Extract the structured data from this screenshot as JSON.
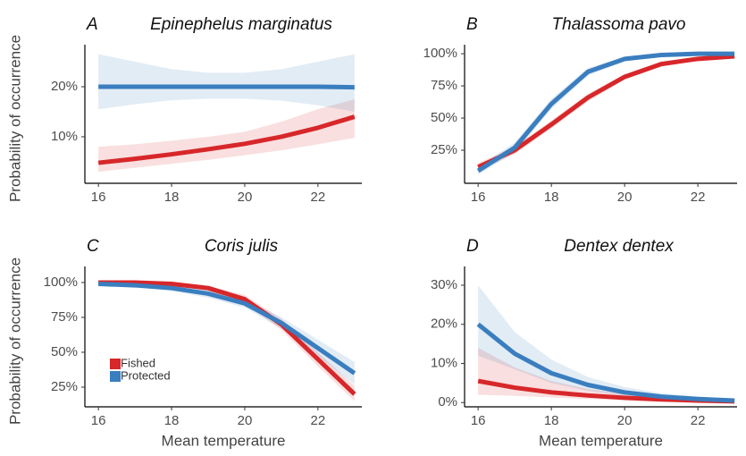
{
  "chart_data": [
    {
      "type": "line",
      "panel": "A",
      "title": "Epinephelus marginatus",
      "ylabel": "Probability of occurrence",
      "x": [
        16,
        17,
        18,
        19,
        20,
        21,
        22,
        23
      ],
      "xlim": [
        15.63,
        23.2
      ],
      "xticks": [
        16,
        18,
        20,
        22
      ],
      "ylim": [
        0.7,
        28.4
      ],
      "yticks": [
        {
          "value": 10,
          "label": "10%"
        },
        {
          "value": 20,
          "label": "20%"
        }
      ],
      "series": [
        {
          "color": "#d7272a",
          "values": [
            4.8,
            5.6,
            6.5,
            7.5,
            8.6,
            10,
            11.8,
            14
          ],
          "lower": [
            3,
            3.8,
            4.6,
            5.4,
            6.3,
            7.3,
            8.5,
            9.8
          ],
          "upper": [
            8,
            8.5,
            9.2,
            10,
            11,
            13,
            15.5,
            17.5
          ]
        },
        {
          "color": "#3a7ebf",
          "values": [
            20,
            20,
            20,
            20,
            20,
            20,
            20,
            19.9
          ],
          "lower": [
            15.5,
            16.5,
            17.3,
            17.6,
            17.6,
            17.2,
            16.3,
            15
          ],
          "upper": [
            26.5,
            25,
            23.5,
            22.8,
            22.8,
            23.5,
            25,
            26.5
          ]
        }
      ]
    },
    {
      "type": "line",
      "panel": "B",
      "title": "Thalassoma pavo",
      "x": [
        16,
        17,
        18,
        19,
        20,
        21,
        22,
        23
      ],
      "xlim": [
        15.63,
        23.07
      ],
      "xticks": [
        16,
        18,
        20,
        22
      ],
      "ylim": [
        -0.7,
        107
      ],
      "yticks": [
        {
          "value": 25,
          "label": "25%"
        },
        {
          "value": 50,
          "label": "50%"
        },
        {
          "value": 75,
          "label": "75%"
        },
        {
          "value": 100,
          "label": "100%"
        }
      ],
      "series": [
        {
          "color": "#d7272a",
          "values": [
            12,
            25,
            45,
            66,
            82,
            92,
            96,
            98
          ],
          "lower": [
            9,
            22,
            42,
            63,
            80,
            90,
            95,
            97
          ],
          "upper": [
            15,
            28,
            48,
            69,
            84,
            93.5,
            97,
            99
          ]
        },
        {
          "color": "#3a7ebf",
          "values": [
            9,
            27,
            61,
            86,
            96,
            99,
            100,
            100
          ],
          "lower": [
            6,
            23,
            57,
            83,
            94,
            98,
            99.5,
            99.8
          ],
          "upper": [
            12,
            31,
            65,
            89,
            97.5,
            99.6,
            100,
            100
          ]
        }
      ]
    },
    {
      "type": "line",
      "panel": "C",
      "title": "Coris julis",
      "ylabel": "Probability of occurrence",
      "xlabel": "Mean temperature",
      "legend": "bottom-left",
      "x": [
        16,
        17,
        18,
        19,
        20,
        21,
        22,
        23
      ],
      "xlim": [
        15.63,
        23.2
      ],
      "xticks": [
        16,
        18,
        20,
        22
      ],
      "ylim": [
        10.9,
        111.5
      ],
      "yticks": [
        {
          "value": 25,
          "label": "25%"
        },
        {
          "value": 50,
          "label": "50%"
        },
        {
          "value": 75,
          "label": "75%"
        },
        {
          "value": 100,
          "label": "100%"
        }
      ],
      "series": [
        {
          "name": "Fished",
          "color": "#d7272a",
          "values": [
            100,
            100,
            99,
            96,
            88,
            70,
            45,
            20
          ],
          "lower": [
            99,
            99,
            98,
            94,
            85,
            66,
            40,
            15
          ],
          "upper": [
            100,
            100,
            99.5,
            97.5,
            91,
            74,
            50,
            26
          ]
        },
        {
          "name": "Protected",
          "color": "#3a7ebf",
          "values": [
            99,
            98,
            96,
            92,
            85,
            71,
            53,
            35
          ],
          "lower": [
            97.5,
            96.5,
            94,
            89,
            82,
            67,
            47,
            27
          ],
          "upper": [
            100,
            99.5,
            98,
            94.5,
            88,
            75,
            59,
            43
          ]
        }
      ]
    },
    {
      "type": "line",
      "panel": "D",
      "title": "Dentex dentex",
      "xlabel": "Mean temperature",
      "x": [
        16,
        17,
        18,
        19,
        20,
        21,
        22,
        23
      ],
      "xlim": [
        15.63,
        23.07
      ],
      "xticks": [
        16,
        18,
        20,
        22
      ],
      "ylim": [
        -1.1,
        34.8
      ],
      "yticks": [
        {
          "value": 0,
          "label": "0%"
        },
        {
          "value": 10,
          "label": "10%"
        },
        {
          "value": 20,
          "label": "20%"
        },
        {
          "value": 30,
          "label": "30%"
        }
      ],
      "series": [
        {
          "color": "#d7272a",
          "values": [
            5.5,
            3.8,
            2.6,
            1.8,
            1.2,
            0.8,
            0.5,
            0.3
          ],
          "lower": [
            2,
            1.7,
            1.3,
            0.9,
            0.6,
            0.4,
            0.2,
            0.1
          ],
          "upper": [
            14,
            9,
            5.5,
            3.5,
            2.2,
            1.5,
            1,
            0.7
          ]
        },
        {
          "color": "#3a7ebf",
          "values": [
            20,
            12.5,
            7.5,
            4.5,
            2.6,
            1.5,
            0.9,
            0.5
          ],
          "lower": [
            12,
            8.5,
            5,
            3,
            1.7,
            1,
            0.5,
            0.2
          ],
          "upper": [
            30,
            18,
            11,
            6.5,
            4,
            2.4,
            1.5,
            0.9
          ]
        }
      ]
    }
  ]
}
